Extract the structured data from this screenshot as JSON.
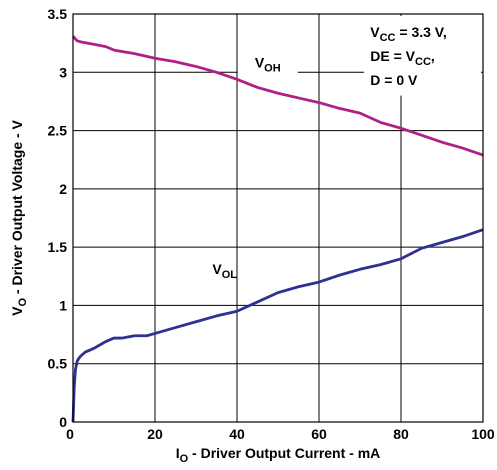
{
  "chart_data": {
    "type": "line",
    "xlabel": {
      "main": "I",
      "sub": "O",
      "rest": " - Driver Output Current - mA"
    },
    "ylabel": {
      "main": "V",
      "sub": "O",
      "rest": " - Driver Output Voltage - V"
    },
    "xlim": [
      0,
      100
    ],
    "ylim": [
      0,
      3.5
    ],
    "x_ticks": [
      "0",
      "20",
      "40",
      "60",
      "80",
      "100"
    ],
    "y_ticks": [
      "0",
      "0.5",
      "1",
      "1.5",
      "2",
      "2.5",
      "3",
      "3.5"
    ],
    "grid": true,
    "annotation": [
      {
        "main": "V",
        "sub": "CC",
        "rest": " = 3.3 V,"
      },
      {
        "main": "DE = V",
        "sub": "CC",
        "rest": ","
      },
      {
        "main": "D = 0 V",
        "sub": "",
        "rest": ""
      }
    ],
    "series": [
      {
        "name": {
          "main": "V",
          "sub": "OH"
        },
        "color": "#b0208a",
        "x": [
          0,
          0.5,
          1,
          2,
          5,
          8,
          10,
          15,
          20,
          25,
          30,
          35,
          40,
          45,
          50,
          55,
          60,
          65,
          70,
          75,
          80,
          85,
          90,
          95,
          100
        ],
        "y": [
          3.31,
          3.29,
          3.27,
          3.26,
          3.24,
          3.22,
          3.19,
          3.16,
          3.12,
          3.09,
          3.05,
          3.0,
          2.94,
          2.87,
          2.82,
          2.78,
          2.74,
          2.69,
          2.65,
          2.57,
          2.52,
          2.46,
          2.4,
          2.35,
          2.29
        ]
      },
      {
        "name": {
          "main": "V",
          "sub": "OL"
        },
        "color": "#2e3192",
        "x": [
          0,
          0.3,
          0.6,
          1,
          1.5,
          2,
          3,
          5,
          7,
          8,
          10,
          12,
          15,
          18,
          20,
          25,
          30,
          35,
          40,
          45,
          50,
          55,
          60,
          65,
          70,
          75,
          80,
          85,
          90,
          95,
          100
        ],
        "y": [
          0,
          0.3,
          0.45,
          0.52,
          0.55,
          0.57,
          0.6,
          0.63,
          0.67,
          0.69,
          0.72,
          0.72,
          0.74,
          0.74,
          0.76,
          0.81,
          0.86,
          0.91,
          0.95,
          1.03,
          1.11,
          1.16,
          1.2,
          1.26,
          1.31,
          1.35,
          1.4,
          1.49,
          1.54,
          1.59,
          1.65
        ]
      }
    ]
  }
}
